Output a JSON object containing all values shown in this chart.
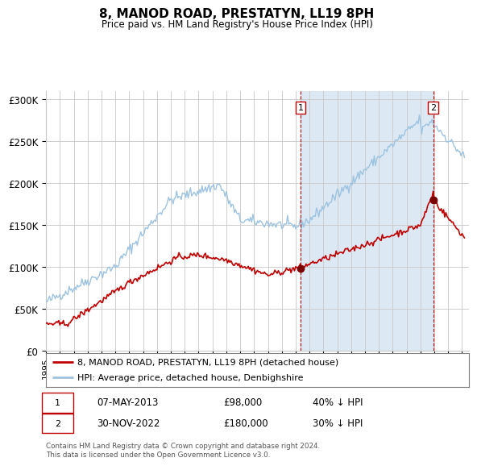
{
  "title": "8, MANOD ROAD, PRESTATYN, LL19 8PH",
  "subtitle": "Price paid vs. HM Land Registry's House Price Index (HPI)",
  "ylim": [
    0,
    310000
  ],
  "yticks": [
    0,
    50000,
    100000,
    150000,
    200000,
    250000,
    300000
  ],
  "ytick_labels": [
    "£0",
    "£50K",
    "£100K",
    "£150K",
    "£200K",
    "£250K",
    "£300K"
  ],
  "xlim": [
    1995.0,
    2025.5
  ],
  "hpi_color": "#9DC3E0",
  "price_color": "#C00000",
  "marker_color": "#7B0000",
  "vline1_color": "#C00000",
  "vline2_color": "#C00000",
  "shade_color": "#DCE9F5",
  "grid_color": "#C8C8C8",
  "background_color": "#FFFFFF",
  "label1_date": "07-MAY-2013",
  "label1_price": "£98,000",
  "label1_pct": "40% ↓ HPI",
  "label2_date": "30-NOV-2022",
  "label2_price": "£180,000",
  "label2_pct": "30% ↓ HPI",
  "transaction1_x": 2013.35,
  "transaction1_y": 98000,
  "transaction2_x": 2022.92,
  "transaction2_y": 180000,
  "legend_label1": "8, MANOD ROAD, PRESTATYN, LL19 8PH (detached house)",
  "legend_label2": "HPI: Average price, detached house, Denbighshire",
  "footer": "Contains HM Land Registry data © Crown copyright and database right 2024.\nThis data is licensed under the Open Government Licence v3.0."
}
